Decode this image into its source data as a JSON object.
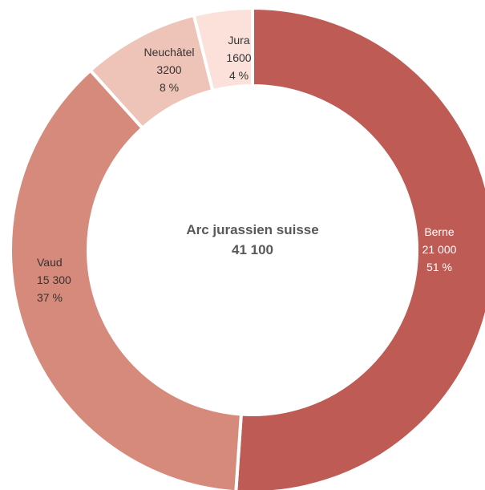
{
  "chart_data": {
    "type": "pie",
    "variant": "donut",
    "center_title": "Arc jurassien suisse",
    "center_total": "41 100",
    "slices": [
      {
        "label": "Berne",
        "value": 21000,
        "value_text": "21 000",
        "pct_text": "51 %",
        "color": "#bf5b55",
        "text_color": "#ffffff"
      },
      {
        "label": "Vaud",
        "value": 15300,
        "value_text": "15 300",
        "pct_text": "37 %",
        "color": "#d58a7c",
        "text_color": "#333333"
      },
      {
        "label": "Neuchâtel",
        "value": 3200,
        "value_text": "3200",
        "pct_text": "8 %",
        "color": "#efc4b8",
        "text_color": "#333333"
      },
      {
        "label": "Jura",
        "value": 1600,
        "value_text": "1600",
        "pct_text": "4 %",
        "color": "#fbe1da",
        "text_color": "#333333"
      }
    ],
    "center_text_color": "#595959"
  }
}
